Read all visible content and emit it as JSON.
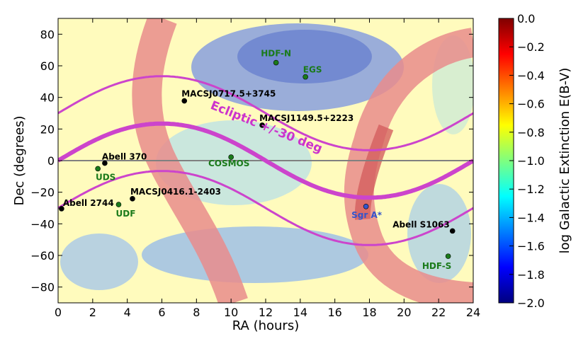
{
  "chart_data": {
    "type": "heatmap",
    "title": "",
    "xlabel": "RA (hours)",
    "ylabel": "Dec (degrees)",
    "xlim": [
      0,
      24
    ],
    "ylim": [
      -90,
      90
    ],
    "xticks": [
      "0",
      "2",
      "4",
      "6",
      "8",
      "10",
      "12",
      "14",
      "16",
      "18",
      "20",
      "22",
      "24"
    ],
    "yticks": [
      "−80",
      "−60",
      "−40",
      "−20",
      "0",
      "20",
      "40",
      "60",
      "80"
    ],
    "xtick_values": [
      0,
      2,
      4,
      6,
      8,
      10,
      12,
      14,
      16,
      18,
      20,
      22,
      24
    ],
    "ytick_values": [
      -80,
      -60,
      -40,
      -20,
      0,
      20,
      40,
      60,
      80
    ],
    "colorbar": {
      "label": "log Galactic Extinction E(B-V)",
      "range": [
        -2.0,
        0.0
      ],
      "ticks": [
        "0.0",
        "−0.2",
        "−0.4",
        "−0.6",
        "−0.8",
        "−1.0",
        "−1.2",
        "−1.4",
        "−1.6",
        "−1.8",
        "−2.0"
      ],
      "tick_values": [
        0.0,
        -0.2,
        -0.4,
        -0.6,
        -0.8,
        -1.0,
        -1.2,
        -1.4,
        -1.6,
        -1.8,
        -2.0
      ],
      "colors": [
        "#00007f",
        "#0000ff",
        "#007fff",
        "#00ffff",
        "#7fff7f",
        "#ffff00",
        "#ff7f00",
        "#ff0000",
        "#7f0000"
      ]
    },
    "ecliptic": {
      "label": "Ecliptic +/-30 deg",
      "amplitude_deg": 23.44,
      "offset_deg": 30,
      "color": "#cc44cc"
    },
    "equator_color": "#808080",
    "targets": [
      {
        "name": "HDF-N",
        "ra": 12.6,
        "dec": 62,
        "color": "#1a7a1a"
      },
      {
        "name": "EGS",
        "ra": 14.3,
        "dec": 53,
        "color": "#1a7a1a"
      },
      {
        "name": "MACSJ0717.5+3745",
        "ra": 7.3,
        "dec": 37.8,
        "color": "#000000"
      },
      {
        "name": "MACSJ1149.5+2223",
        "ra": 11.8,
        "dec": 22.4,
        "color": "#000000"
      },
      {
        "name": "COSMOS",
        "ra": 10.0,
        "dec": 2.2,
        "color": "#1a7a1a"
      },
      {
        "name": "Abell 370",
        "ra": 2.7,
        "dec": -1.6,
        "color": "#000000"
      },
      {
        "name": "UDS",
        "ra": 2.3,
        "dec": -5.1,
        "color": "#1a7a1a"
      },
      {
        "name": "MACSJ0416.1-2403",
        "ra": 4.3,
        "dec": -24.1,
        "color": "#000000"
      },
      {
        "name": "UDF",
        "ra": 3.5,
        "dec": -27.8,
        "color": "#1a7a1a"
      },
      {
        "name": "Abell 2744",
        "ra": 0.2,
        "dec": -30.4,
        "color": "#000000"
      },
      {
        "name": "Sgr A*",
        "ra": 17.8,
        "dec": -29.0,
        "color": "#3355cc"
      },
      {
        "name": "Abell S1063",
        "ra": 22.8,
        "dec": -44.5,
        "color": "#000000"
      },
      {
        "name": "HDF-S",
        "ra": 22.55,
        "dec": -60.5,
        "color": "#1a7a1a"
      }
    ]
  }
}
